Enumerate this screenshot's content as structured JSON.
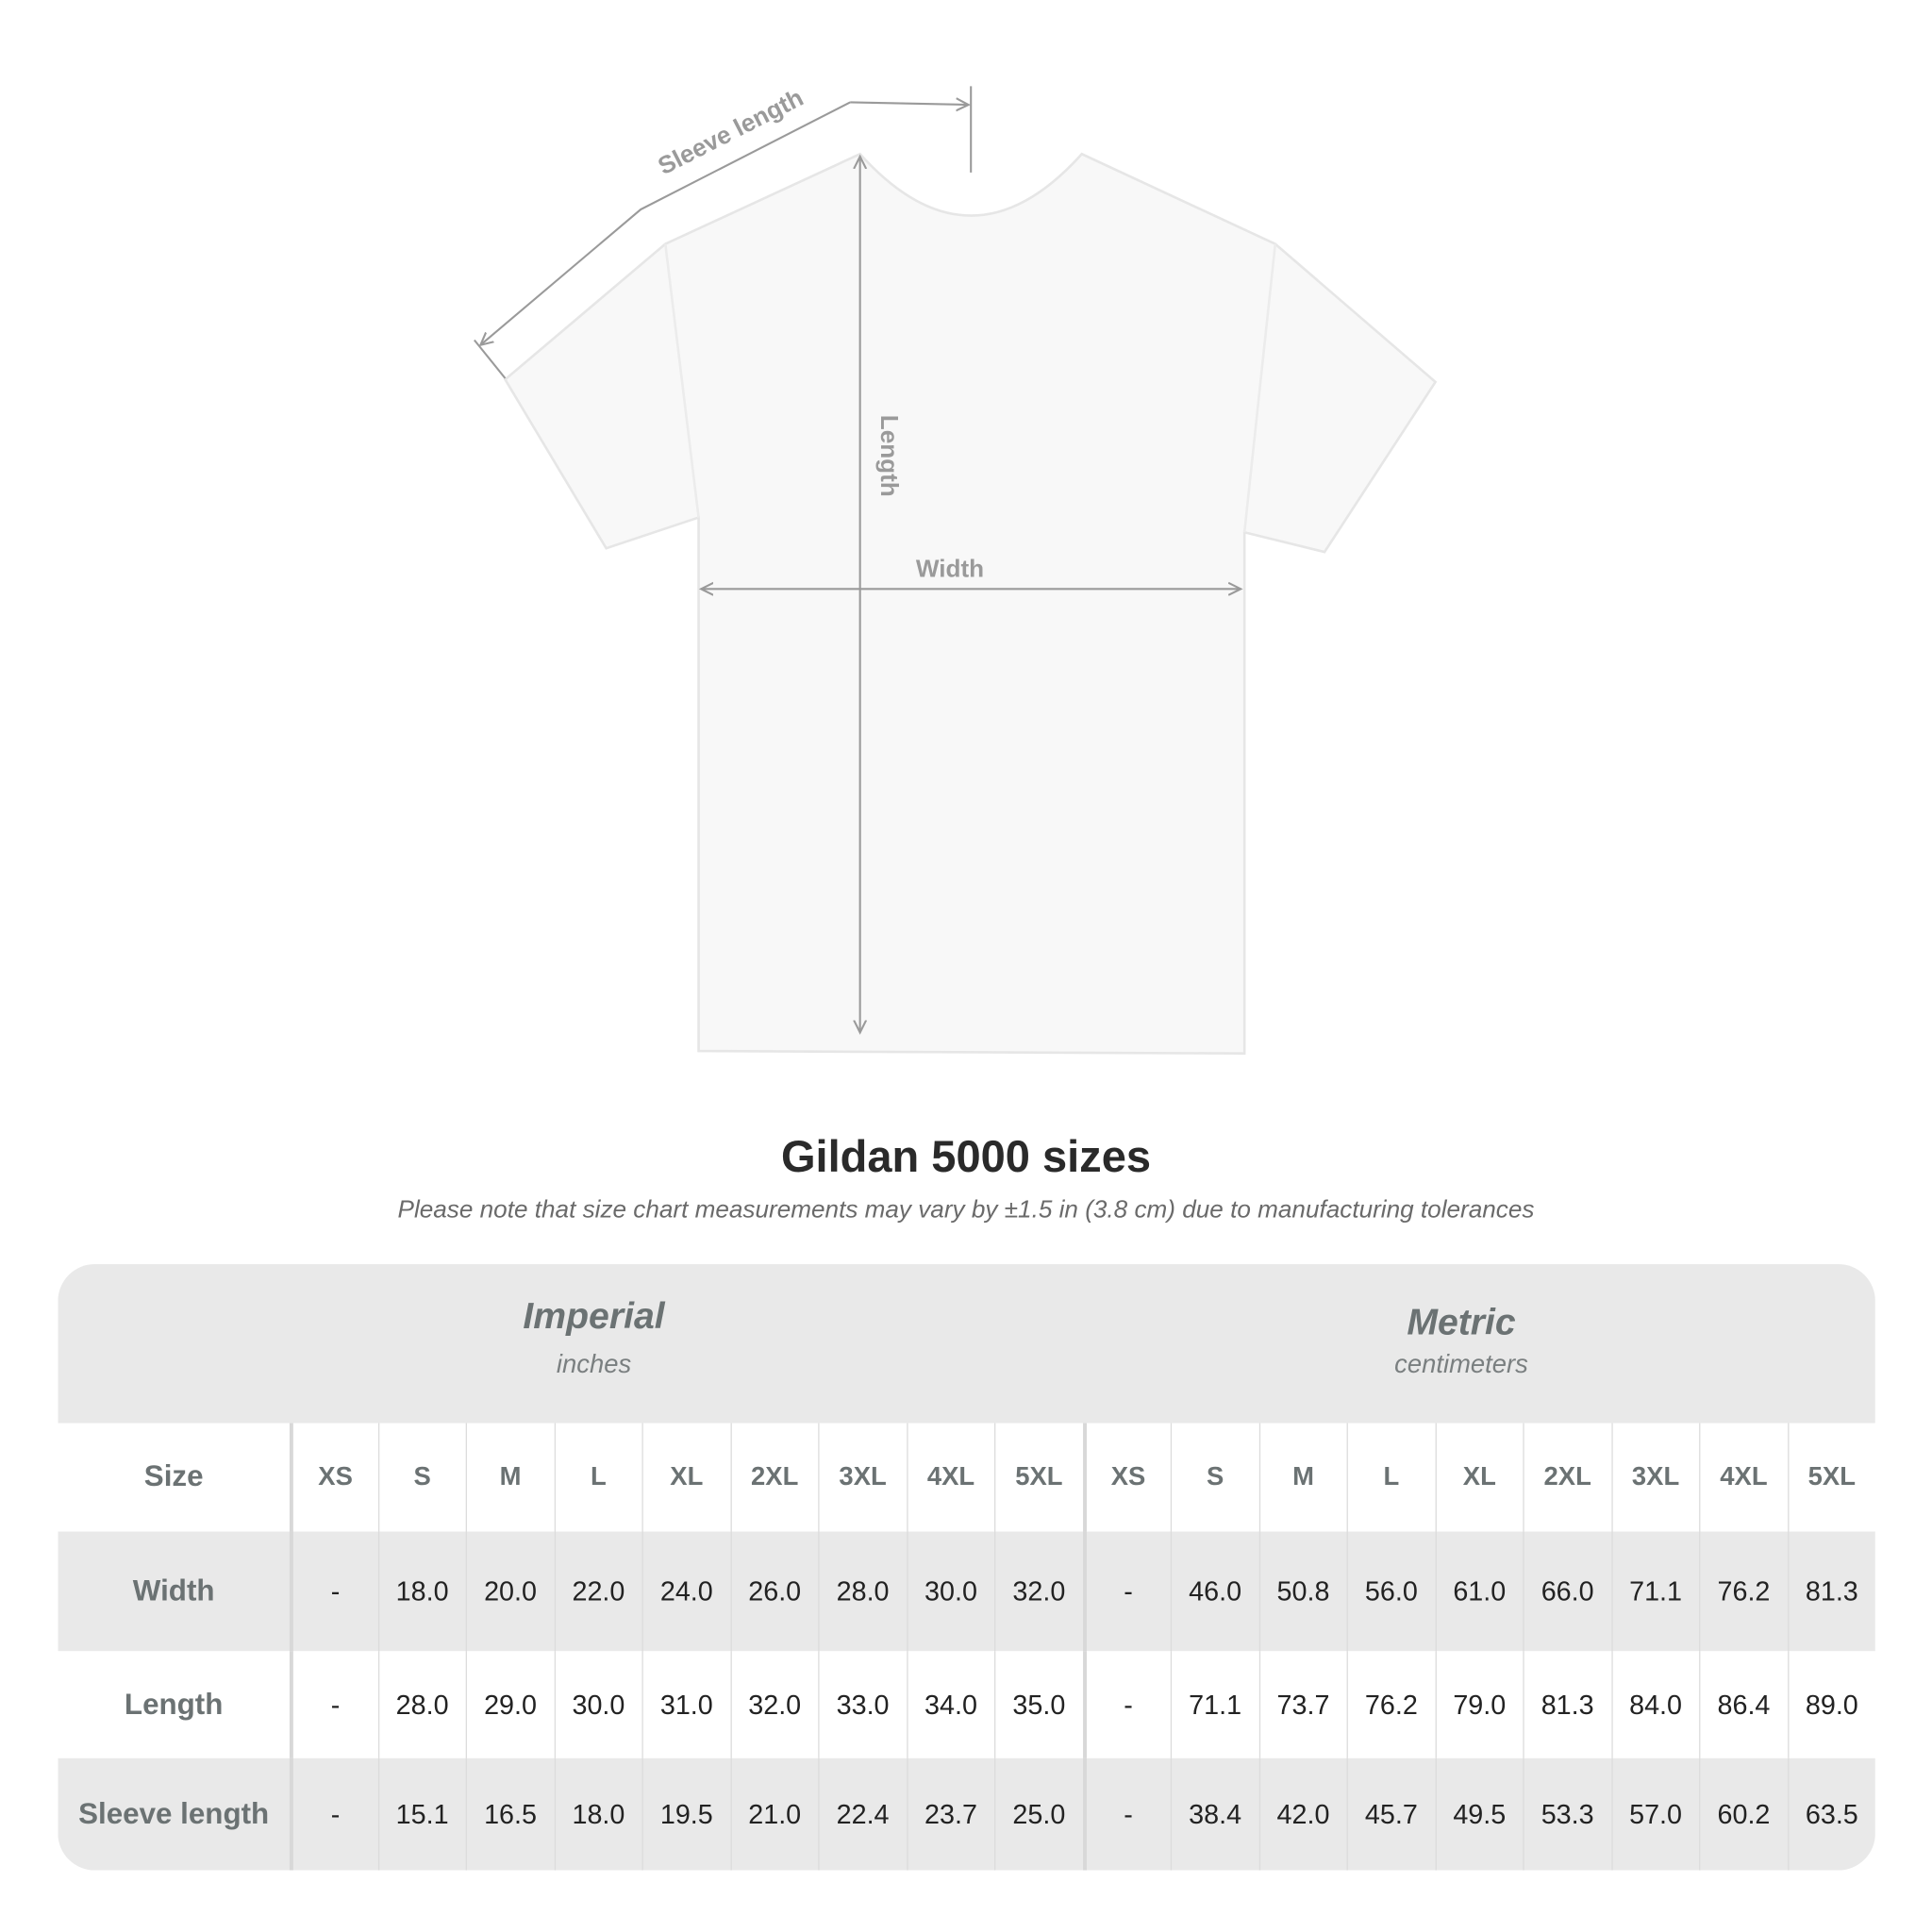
{
  "diagram": {
    "labels": {
      "sleeve": "Sleeve length",
      "length": "Length",
      "width": "Width"
    }
  },
  "title": "Gildan 5000 sizes",
  "note": "Please note that size chart measurements may vary by ±1.5 in (3.8 cm) due to manufacturing tolerances",
  "table": {
    "imperial": {
      "name": "Imperial",
      "unit": "inches"
    },
    "metric": {
      "name": "Metric",
      "unit": "centimeters"
    },
    "size_label": "Size",
    "sizes": [
      "XS",
      "S",
      "M",
      "L",
      "XL",
      "2XL",
      "3XL",
      "4XL",
      "5XL"
    ],
    "rows": [
      {
        "label": "Width",
        "imperial": [
          "-",
          "18.0",
          "20.0",
          "22.0",
          "24.0",
          "26.0",
          "28.0",
          "30.0",
          "32.0"
        ],
        "metric": [
          "-",
          "46.0",
          "50.8",
          "56.0",
          "61.0",
          "66.0",
          "71.1",
          "76.2",
          "81.3"
        ]
      },
      {
        "label": "Length",
        "imperial": [
          "-",
          "28.0",
          "29.0",
          "30.0",
          "31.0",
          "32.0",
          "33.0",
          "34.0",
          "35.0"
        ],
        "metric": [
          "-",
          "71.1",
          "73.7",
          "76.2",
          "79.0",
          "81.3",
          "84.0",
          "86.4",
          "89.0"
        ]
      },
      {
        "label": "Sleeve length",
        "imperial": [
          "-",
          "15.1",
          "16.5",
          "18.0",
          "19.5",
          "21.0",
          "22.4",
          "23.7",
          "25.0"
        ],
        "metric": [
          "-",
          "38.4",
          "42.0",
          "45.7",
          "49.5",
          "53.3",
          "57.0",
          "60.2",
          "63.5"
        ]
      }
    ]
  },
  "colors": {
    "header_bg": "#e9e9e9",
    "label_text": "#6b7273",
    "line": "#9a9a9a"
  }
}
